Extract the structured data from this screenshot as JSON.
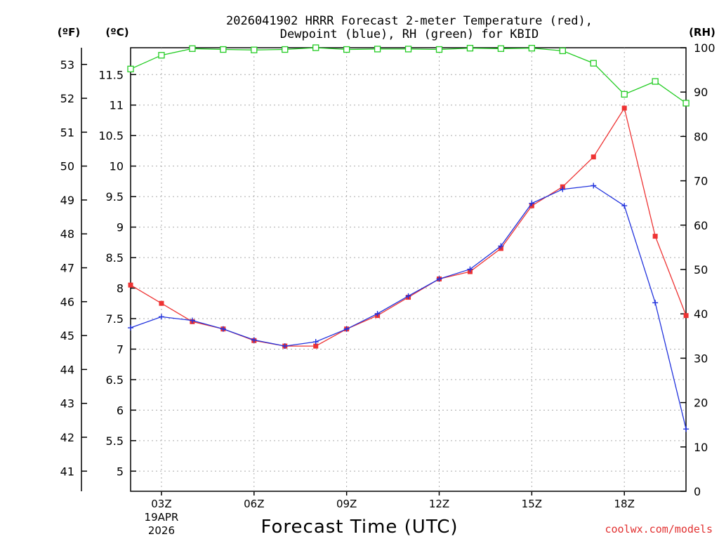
{
  "title": {
    "line1": "2026041902 HRRR Forecast 2-meter Temperature (red),",
    "line2": "Dewpoint (blue), RH (green) for KBID"
  },
  "credit": "coolwx.com/models",
  "colors": {
    "temp": "#ee3333",
    "dew": "#2233dd",
    "rh": "#22cc22",
    "grid": "#aaaaaa"
  },
  "chart_data": {
    "type": "line",
    "xlabel": "Forecast Time (UTC)",
    "x": [
      "02Z",
      "03Z",
      "04Z",
      "05Z",
      "06Z",
      "07Z",
      "08Z",
      "09Z",
      "10Z",
      "11Z",
      "12Z",
      "13Z",
      "14Z",
      "15Z",
      "16Z",
      "17Z",
      "18Z",
      "19Z",
      "20Z"
    ],
    "x_ticks": [
      {
        "label": "03Z",
        "date": "19APR",
        "year": "2026",
        "index": 1
      },
      {
        "label": "06Z",
        "index": 4
      },
      {
        "label": "09Z",
        "index": 7
      },
      {
        "label": "12Z",
        "index": 10
      },
      {
        "label": "15Z",
        "index": 13
      },
      {
        "label": "18Z",
        "index": 16
      }
    ],
    "axes": {
      "celsius": {
        "label": "(ºC)",
        "ylim": [
          4.67,
          11.94
        ],
        "ticks": [
          "5",
          "5.5",
          "6",
          "6.5",
          "7",
          "7.5",
          "8",
          "8.5",
          "9",
          "9.5",
          "10",
          "10.5",
          "11",
          "11.5"
        ]
      },
      "fahrenheit": {
        "label": "(ºF)",
        "ticks": [
          "41",
          "42",
          "43",
          "44",
          "45",
          "46",
          "47",
          "48",
          "49",
          "50",
          "51",
          "52",
          "53"
        ]
      },
      "rh": {
        "label": "(RH)",
        "ylim": [
          0,
          100
        ],
        "ticks": [
          "0",
          "10",
          "20",
          "30",
          "40",
          "50",
          "60",
          "70",
          "80",
          "90",
          "100"
        ]
      }
    },
    "series": [
      {
        "name": "Temperature",
        "units": "C",
        "color": "#ee3333",
        "marker": "filled-square",
        "values": [
          8.05,
          7.75,
          7.45,
          7.33,
          7.14,
          7.05,
          7.05,
          7.33,
          7.55,
          7.85,
          8.15,
          8.27,
          8.65,
          9.35,
          9.66,
          10.15,
          10.95,
          8.85,
          7.55
        ]
      },
      {
        "name": "Dewpoint",
        "units": "C",
        "color": "#2233dd",
        "marker": "plus",
        "values": [
          7.35,
          7.53,
          7.47,
          7.33,
          7.15,
          7.05,
          7.12,
          7.33,
          7.58,
          7.87,
          8.15,
          8.31,
          8.69,
          9.39,
          9.62,
          9.68,
          9.35,
          7.76,
          5.69
        ]
      },
      {
        "name": "RH",
        "units": "%",
        "color": "#22cc22",
        "marker": "open-square",
        "values": [
          95.2,
          98.3,
          99.8,
          99.6,
          99.5,
          99.6,
          100,
          99.6,
          99.7,
          99.7,
          99.6,
          99.9,
          99.8,
          99.9,
          99.3,
          96.5,
          89.5,
          92.4,
          87.5
        ]
      }
    ]
  }
}
